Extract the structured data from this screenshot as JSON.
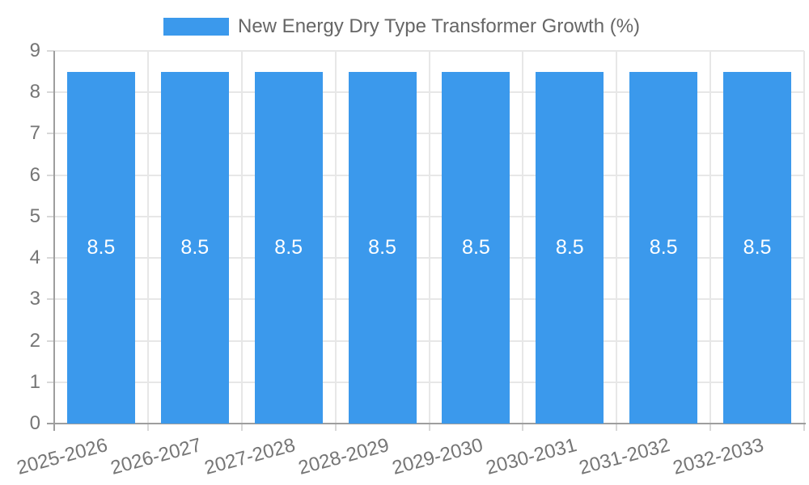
{
  "chart_data": {
    "type": "bar",
    "title": "New Energy Dry Type Transformer Growth (%)",
    "legend": {
      "position": "top-center",
      "entries": [
        "New Energy Dry Type Transformer Growth (%)"
      ]
    },
    "categories": [
      "2025-2026",
      "2026-2027",
      "2027-2028",
      "2028-2029",
      "2029-2030",
      "2030-2031",
      "2031-2032",
      "2032-2033"
    ],
    "series": [
      {
        "name": "New Energy Dry Type Transformer Growth (%)",
        "values": [
          8.5,
          8.5,
          8.5,
          8.5,
          8.5,
          8.5,
          8.5,
          8.5
        ]
      }
    ],
    "bar_labels": [
      "8.5",
      "8.5",
      "8.5",
      "8.5",
      "8.5",
      "8.5",
      "8.5",
      "8.5"
    ],
    "xlabel": "",
    "ylabel": "",
    "ylim": [
      0,
      9
    ],
    "yticks": [
      0,
      1,
      2,
      3,
      4,
      5,
      6,
      7,
      8,
      9
    ],
    "grid": "on",
    "x_label_rotation_deg": -15,
    "colors": {
      "bar": "#3B99EC",
      "bar_label": "#FFFFFF",
      "grid": "#E7E7E7",
      "axis": "#9E9E9E",
      "tick": "#D8D8D8",
      "tick_label": "#757575",
      "legend_text": "#666666",
      "background": "#FFFFFF"
    }
  }
}
